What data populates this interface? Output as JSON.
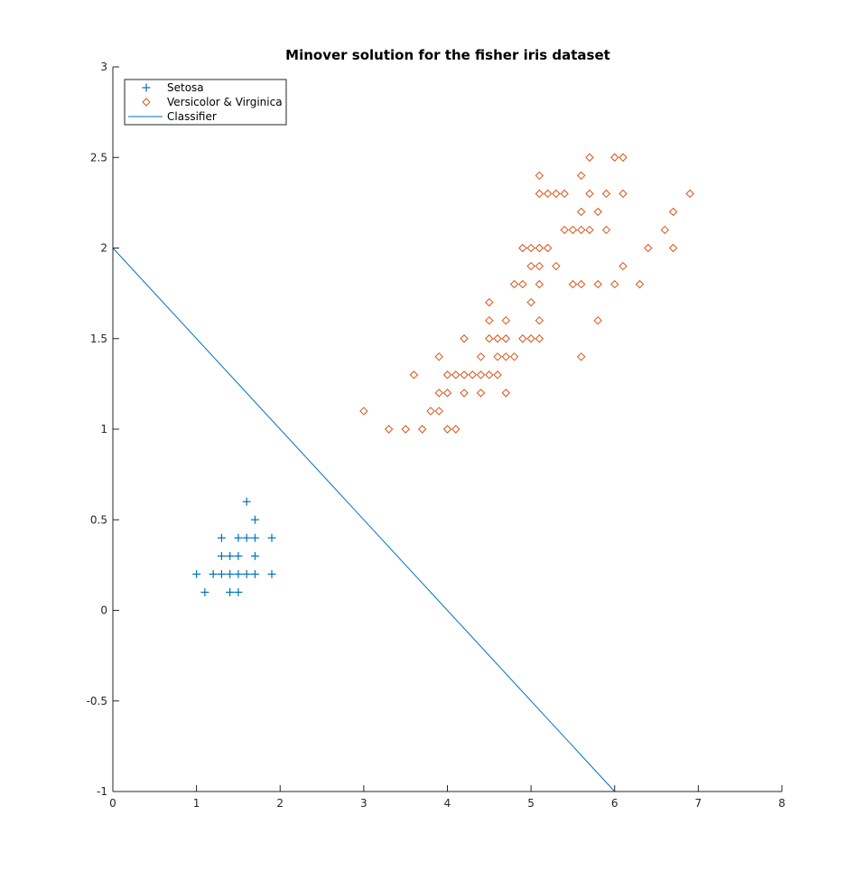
{
  "chart_data": {
    "type": "scatter",
    "title": "Minover solution for the fisher iris dataset",
    "xlabel": "",
    "ylabel": "",
    "xlim": [
      0,
      8
    ],
    "ylim": [
      -1,
      3
    ],
    "xticks": [
      0,
      1,
      2,
      3,
      4,
      5,
      6,
      7,
      8
    ],
    "yticks": [
      -1,
      -0.5,
      0,
      0.5,
      1,
      1.5,
      2,
      2.5,
      3
    ],
    "xtick_labels": [
      "0",
      "1",
      "2",
      "3",
      "4",
      "5",
      "6",
      "7",
      "8"
    ],
    "ytick_labels": [
      "-1",
      "-0.5",
      "0",
      "0.5",
      "1",
      "1.5",
      "2",
      "2.5",
      "3"
    ],
    "grid": false,
    "legend_position": "top-left",
    "series": [
      {
        "name": "Setosa",
        "marker": "plus",
        "color": "#0072BD",
        "points": [
          [
            1.0,
            0.2
          ],
          [
            1.1,
            0.1
          ],
          [
            1.2,
            0.2
          ],
          [
            1.3,
            0.2
          ],
          [
            1.3,
            0.3
          ],
          [
            1.3,
            0.4
          ],
          [
            1.4,
            0.1
          ],
          [
            1.4,
            0.2
          ],
          [
            1.4,
            0.3
          ],
          [
            1.5,
            0.1
          ],
          [
            1.5,
            0.2
          ],
          [
            1.5,
            0.3
          ],
          [
            1.5,
            0.4
          ],
          [
            1.6,
            0.2
          ],
          [
            1.6,
            0.4
          ],
          [
            1.6,
            0.6
          ],
          [
            1.7,
            0.2
          ],
          [
            1.7,
            0.3
          ],
          [
            1.7,
            0.4
          ],
          [
            1.7,
            0.5
          ],
          [
            1.9,
            0.2
          ],
          [
            1.9,
            0.4
          ]
        ]
      },
      {
        "name": "Versicolor & Virginica",
        "marker": "diamond",
        "color": "#D95319",
        "points": [
          [
            3.0,
            1.1
          ],
          [
            3.3,
            1.0
          ],
          [
            3.5,
            1.0
          ],
          [
            3.6,
            1.3
          ],
          [
            3.7,
            1.0
          ],
          [
            3.8,
            1.1
          ],
          [
            3.9,
            1.1
          ],
          [
            3.9,
            1.2
          ],
          [
            3.9,
            1.4
          ],
          [
            4.0,
            1.0
          ],
          [
            4.0,
            1.2
          ],
          [
            4.0,
            1.3
          ],
          [
            4.1,
            1.0
          ],
          [
            4.1,
            1.3
          ],
          [
            4.2,
            1.2
          ],
          [
            4.2,
            1.3
          ],
          [
            4.2,
            1.5
          ],
          [
            4.3,
            1.3
          ],
          [
            4.4,
            1.2
          ],
          [
            4.4,
            1.3
          ],
          [
            4.4,
            1.4
          ],
          [
            4.5,
            1.3
          ],
          [
            4.5,
            1.5
          ],
          [
            4.5,
            1.6
          ],
          [
            4.5,
            1.7
          ],
          [
            4.6,
            1.3
          ],
          [
            4.6,
            1.4
          ],
          [
            4.6,
            1.5
          ],
          [
            4.7,
            1.2
          ],
          [
            4.7,
            1.4
          ],
          [
            4.7,
            1.5
          ],
          [
            4.7,
            1.6
          ],
          [
            4.8,
            1.4
          ],
          [
            4.8,
            1.8
          ],
          [
            4.9,
            1.5
          ],
          [
            4.9,
            1.8
          ],
          [
            4.9,
            2.0
          ],
          [
            5.0,
            1.5
          ],
          [
            5.0,
            1.7
          ],
          [
            5.0,
            1.9
          ],
          [
            5.0,
            2.0
          ],
          [
            5.1,
            1.5
          ],
          [
            5.1,
            1.6
          ],
          [
            5.1,
            1.8
          ],
          [
            5.1,
            1.9
          ],
          [
            5.1,
            2.0
          ],
          [
            5.1,
            2.3
          ],
          [
            5.1,
            2.4
          ],
          [
            5.2,
            2.0
          ],
          [
            5.2,
            2.3
          ],
          [
            5.3,
            1.9
          ],
          [
            5.3,
            2.3
          ],
          [
            5.4,
            2.1
          ],
          [
            5.4,
            2.3
          ],
          [
            5.5,
            1.8
          ],
          [
            5.5,
            2.1
          ],
          [
            5.6,
            1.4
          ],
          [
            5.6,
            1.8
          ],
          [
            5.6,
            2.1
          ],
          [
            5.6,
            2.2
          ],
          [
            5.6,
            2.4
          ],
          [
            5.7,
            2.1
          ],
          [
            5.7,
            2.3
          ],
          [
            5.7,
            2.5
          ],
          [
            5.8,
            1.6
          ],
          [
            5.8,
            1.8
          ],
          [
            5.8,
            2.2
          ],
          [
            5.9,
            2.1
          ],
          [
            5.9,
            2.3
          ],
          [
            6.0,
            1.8
          ],
          [
            6.0,
            2.5
          ],
          [
            6.1,
            1.9
          ],
          [
            6.1,
            2.3
          ],
          [
            6.1,
            2.5
          ],
          [
            6.3,
            1.8
          ],
          [
            6.4,
            2.0
          ],
          [
            6.6,
            2.1
          ],
          [
            6.7,
            2.0
          ],
          [
            6.7,
            2.2
          ],
          [
            6.9,
            2.3
          ]
        ]
      },
      {
        "name": "Classifier",
        "marker": "line",
        "color": "#0072BD",
        "points": [
          [
            0,
            2.0
          ],
          [
            6.0,
            -1.0
          ]
        ]
      }
    ]
  }
}
